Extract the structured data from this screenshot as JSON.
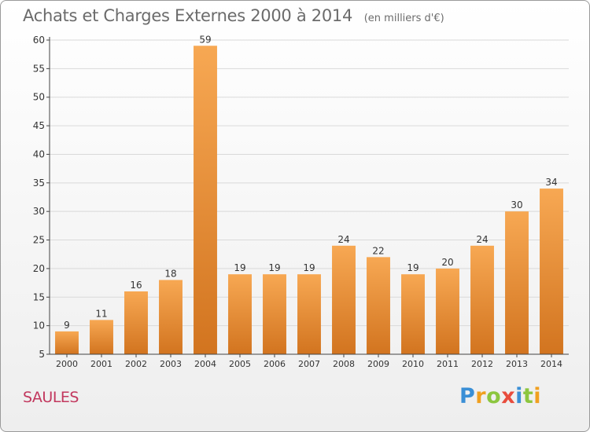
{
  "title": "Achats et Charges Externes 2000 à 2014",
  "subtitle": "(en milliers d'€)",
  "location": "SAULES",
  "logo": {
    "text": "Proxiti",
    "letters": [
      {
        "char": "P",
        "color": "#3a8fd6"
      },
      {
        "char": "r",
        "color": "#f0a020"
      },
      {
        "char": "o",
        "color": "#8cc63f"
      },
      {
        "char": "x",
        "color": "#e84c3d"
      },
      {
        "char": "i",
        "color": "#3a8fd6"
      },
      {
        "char": "t",
        "color": "#8cc63f"
      },
      {
        "char": "i",
        "color": "#f0a020"
      }
    ]
  },
  "colors": {
    "bar_top": "#f7a853",
    "bar_bottom": "#d2741f",
    "grid": "#d9d9d9",
    "axis": "#444444",
    "text": "#333333"
  },
  "chart_data": {
    "type": "bar",
    "title": "Achats et Charges Externes 2000 à 2014",
    "subtitle": "(en milliers d'€)",
    "categories": [
      "2000",
      "2001",
      "2002",
      "2003",
      "2004",
      "2005",
      "2006",
      "2007",
      "2008",
      "2009",
      "2010",
      "2011",
      "2012",
      "2013",
      "2014"
    ],
    "values": [
      9,
      11,
      16,
      18,
      59,
      19,
      19,
      19,
      24,
      22,
      19,
      20,
      24,
      30,
      34
    ],
    "ylim": [
      5,
      60
    ],
    "yticks": [
      5,
      10,
      15,
      20,
      25,
      30,
      35,
      40,
      45,
      50,
      55,
      60
    ],
    "grid": true,
    "data_labels": true
  }
}
